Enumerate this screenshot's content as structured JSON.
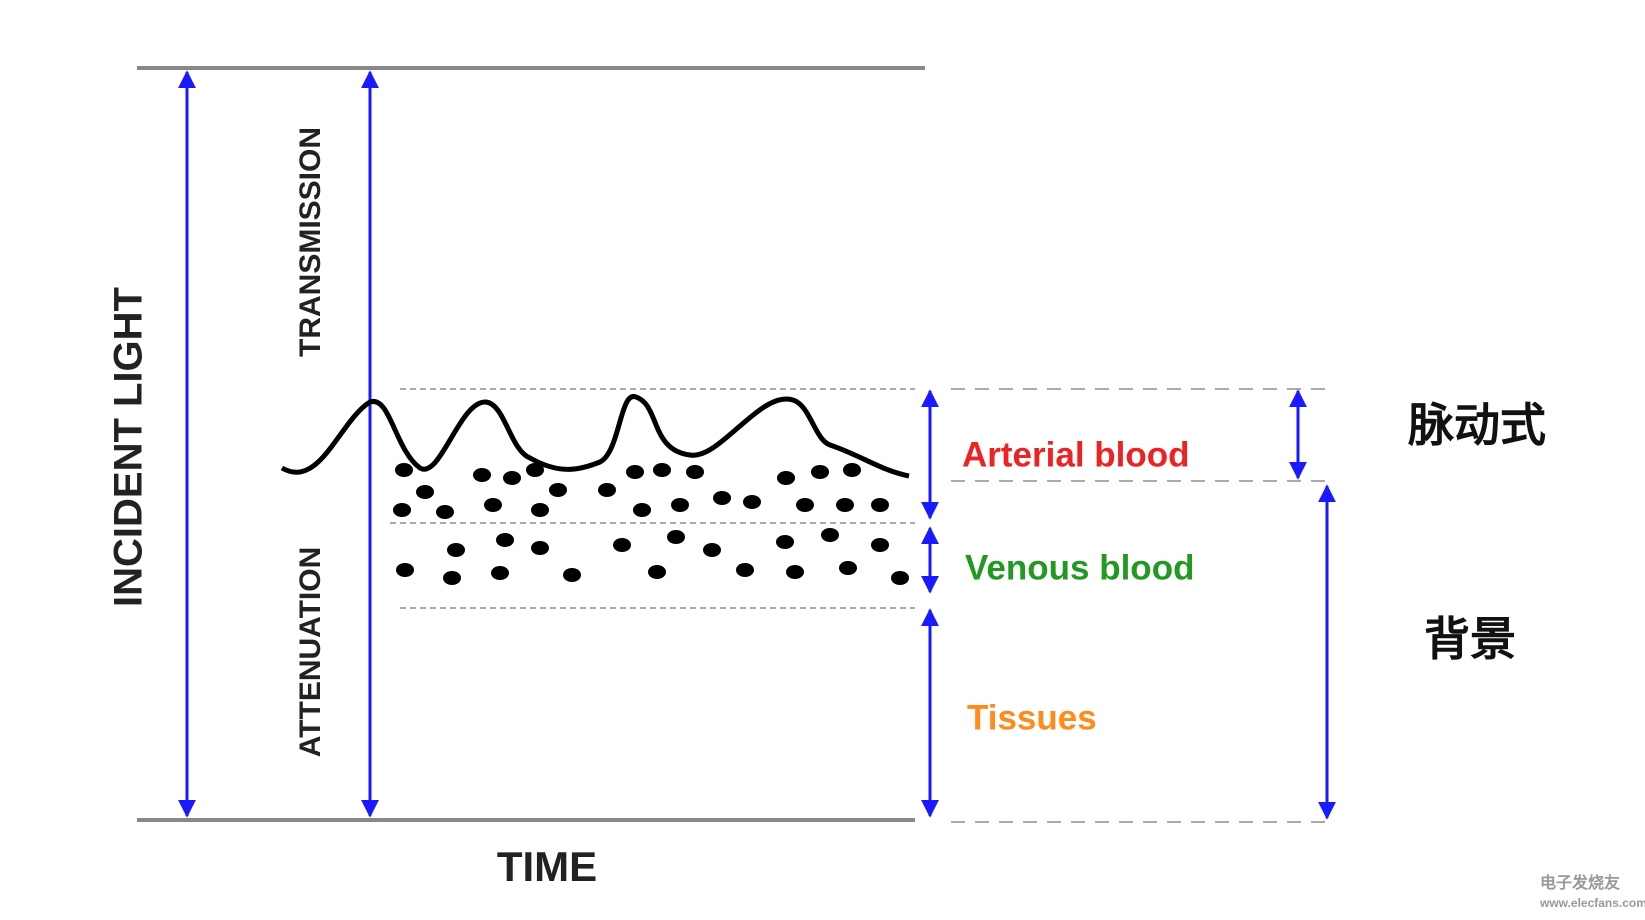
{
  "axes": {
    "incident": "INCIDENT LIGHT",
    "transmission": "TRANSMISSION",
    "attenuation": "ATTENUATION",
    "time": "TIME"
  },
  "layers": {
    "arterial": "Arterial blood",
    "venous": "Venous blood",
    "tissues": "Tissues"
  },
  "groups": {
    "pulsatile": "脉动式",
    "background": "背景"
  },
  "watermark": {
    "brand": "电子发烧友",
    "url": "www.elecfans.com"
  }
}
